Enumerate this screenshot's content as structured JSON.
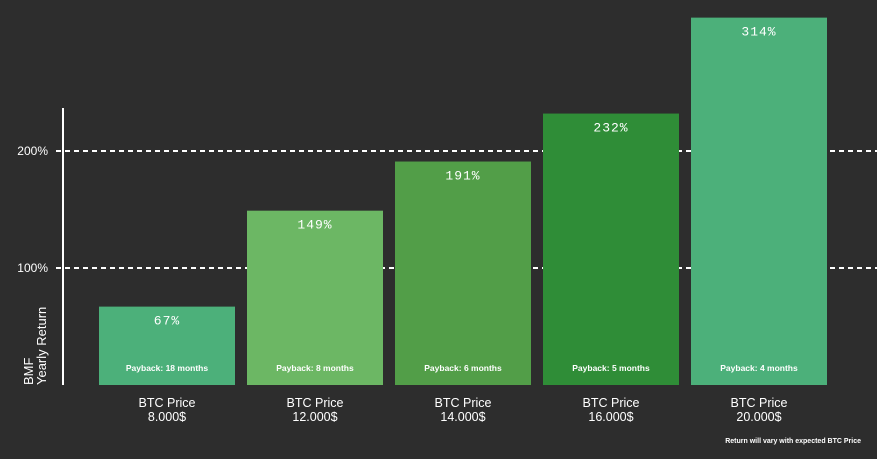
{
  "chart_data": {
    "type": "bar",
    "categories": [
      [
        "BTC Price",
        "8.000$"
      ],
      [
        "BTC Price",
        "12.000$"
      ],
      [
        "BTC Price",
        "14.000$"
      ],
      [
        "BTC Price",
        "16.000$"
      ],
      [
        "BTC Price",
        "20.000$"
      ]
    ],
    "values": [
      67,
      149,
      191,
      232,
      314
    ],
    "value_labels": [
      "67%",
      "149%",
      "191%",
      "232%",
      "314%"
    ],
    "payback_labels": [
      "Payback: 18 months",
      "Payback: 8 months",
      "Payback: 6 months",
      "Payback: 5 months",
      "Payback: 4 months"
    ],
    "bar_colors": [
      "#4cb07a",
      "#6cb764",
      "#529e48",
      "#2f8d37",
      "#4cb07a"
    ],
    "ylabel": [
      "BMF",
      "Yearly Return"
    ],
    "ylim": [
      0,
      330
    ],
    "reference_lines": [
      {
        "value": 100,
        "label": "100%"
      },
      {
        "value": 200,
        "label": "200%"
      }
    ],
    "grid": false,
    "legend": "none"
  },
  "footnote": "Return will vary with expected BTC Price",
  "colors": {
    "background": "#2d2d2d",
    "text": "#ffffff",
    "reference_line": "#ffffff"
  }
}
